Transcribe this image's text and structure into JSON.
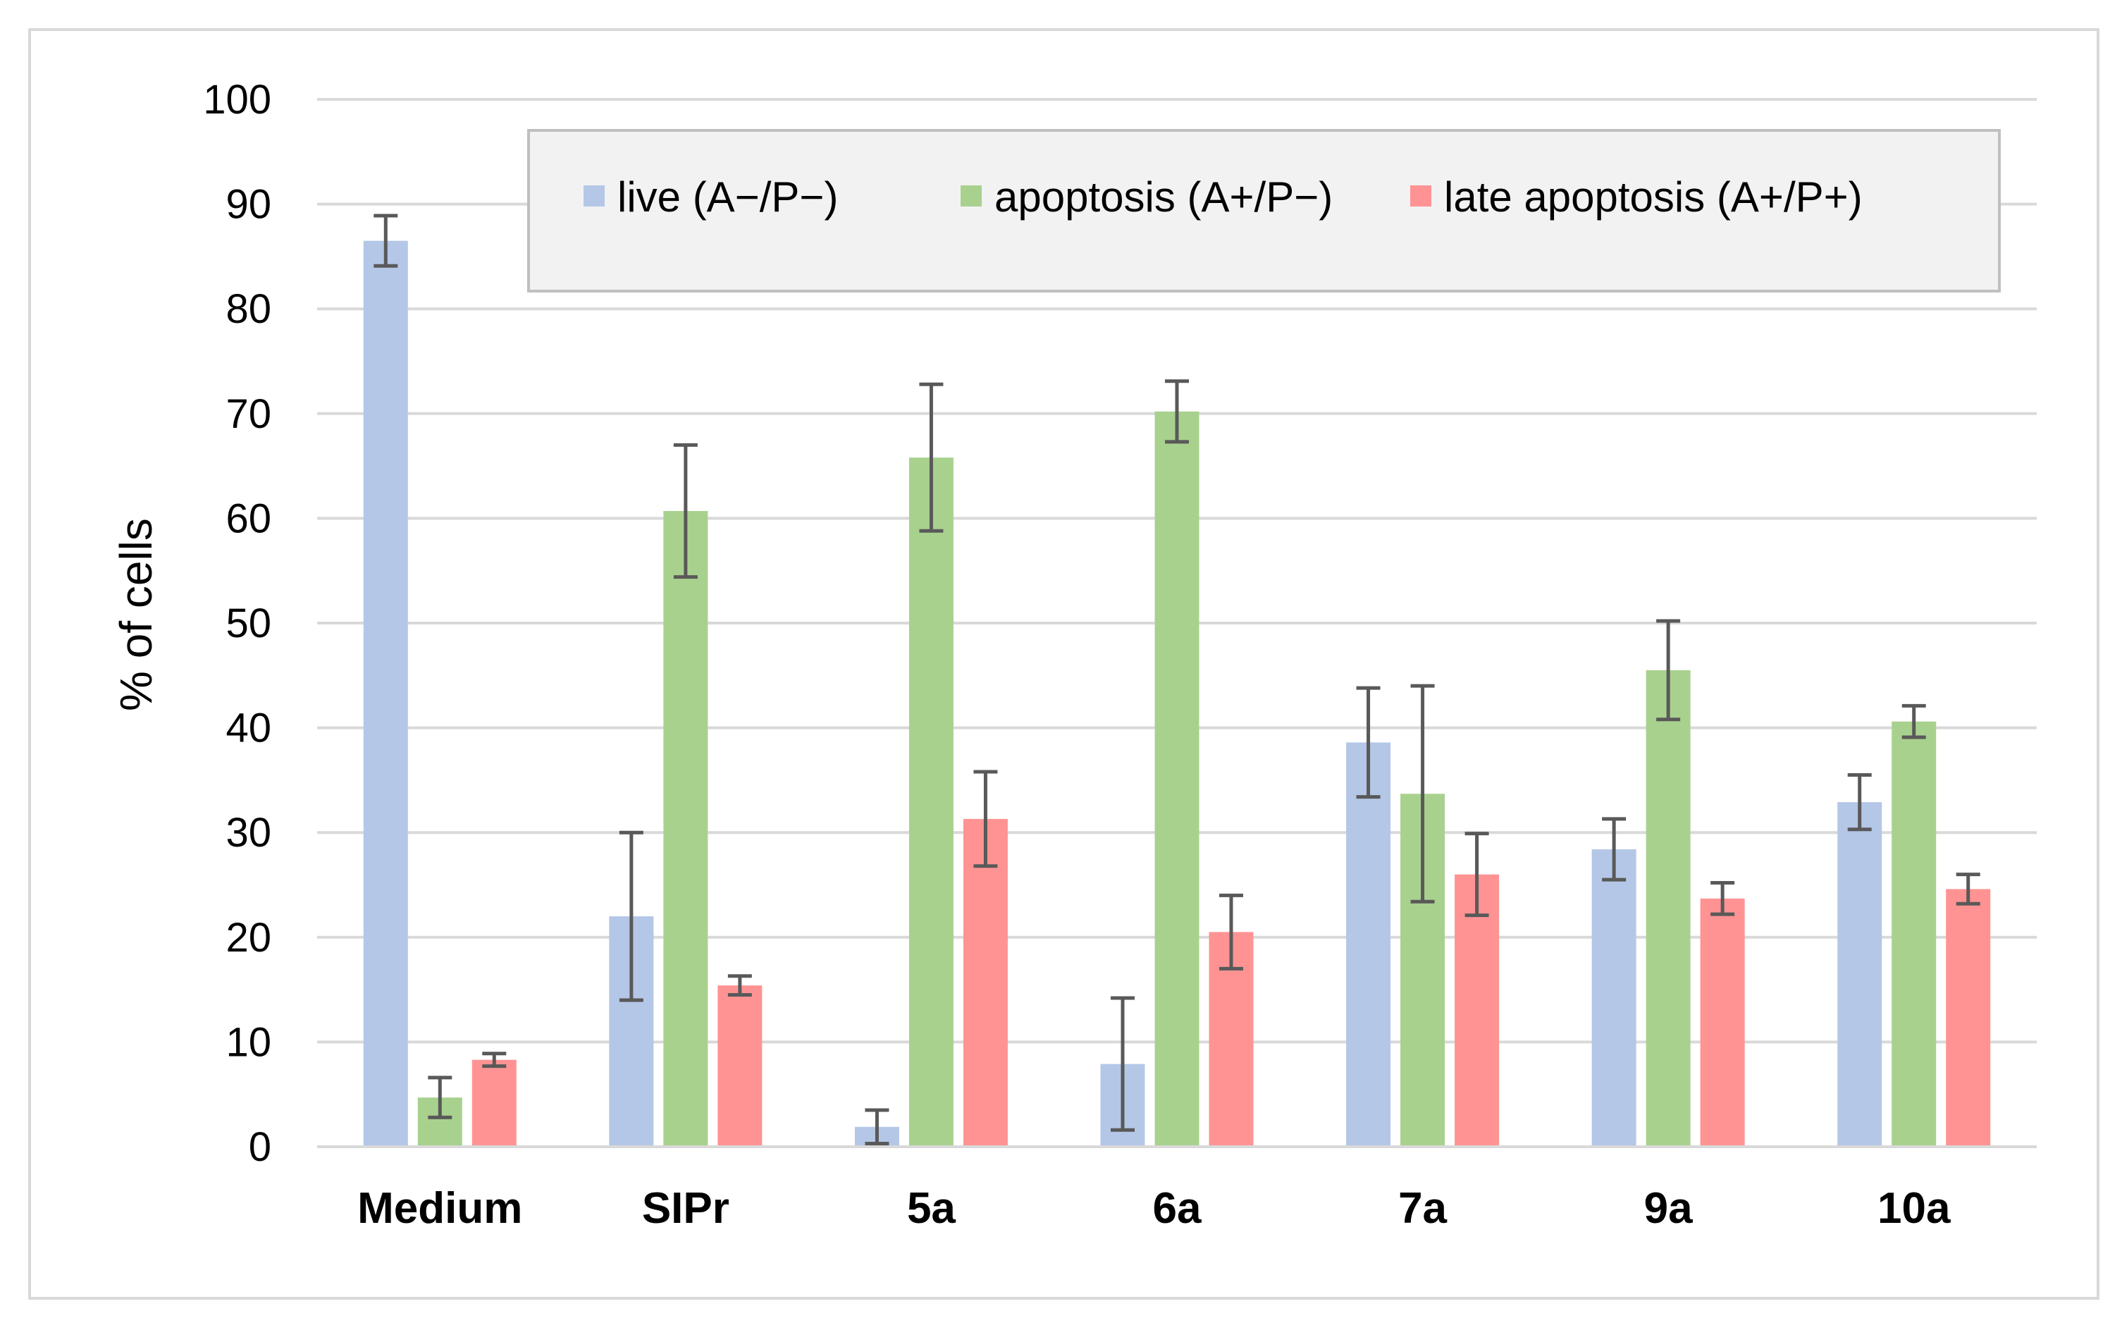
{
  "chart_data": {
    "type": "bar",
    "title": "",
    "xlabel": "",
    "ylabel": "% of cells",
    "ylim": [
      0,
      100
    ],
    "yticks": [
      0,
      10,
      20,
      30,
      40,
      50,
      60,
      70,
      80,
      90,
      100
    ],
    "ytick_labels": [
      "0",
      "10",
      "20",
      "30",
      "40",
      "50",
      "60",
      "70",
      "80",
      "90",
      "100"
    ],
    "grid": true,
    "legend_position": "top-right",
    "categories": [
      "Medium",
      "SIPr",
      "5a",
      "6a",
      "7a",
      "9a",
      "10a"
    ],
    "series": [
      {
        "name": "live (A−/P−)",
        "color": "#b4c7e7",
        "values": [
          86.5,
          22.0,
          1.9,
          7.9,
          38.6,
          28.4,
          32.9
        ],
        "errors": [
          2.4,
          8.0,
          1.6,
          6.3,
          5.2,
          2.9,
          2.6
        ]
      },
      {
        "name": "apoptosis (A+/P−)",
        "color": "#a9d18e",
        "values": [
          4.7,
          60.7,
          65.8,
          70.2,
          33.7,
          45.5,
          40.6
        ],
        "errors": [
          1.9,
          6.3,
          7.0,
          2.9,
          10.3,
          4.7,
          1.5
        ]
      },
      {
        "name": "late apoptosis (A+/P+)",
        "color": "#ff9393",
        "values": [
          8.3,
          15.4,
          31.3,
          20.5,
          26.0,
          23.7,
          24.6
        ],
        "errors": [
          0.6,
          0.9,
          4.5,
          3.5,
          3.9,
          1.5,
          1.4
        ]
      }
    ],
    "error_bar_color": "#595959",
    "gridline_color": "#d9d9d9",
    "axis_line_color": "#d9d9d9",
    "legend_background": "#f2f2f2",
    "legend_border": "#bfbfbf",
    "frame_border": "#d9d9d9"
  }
}
